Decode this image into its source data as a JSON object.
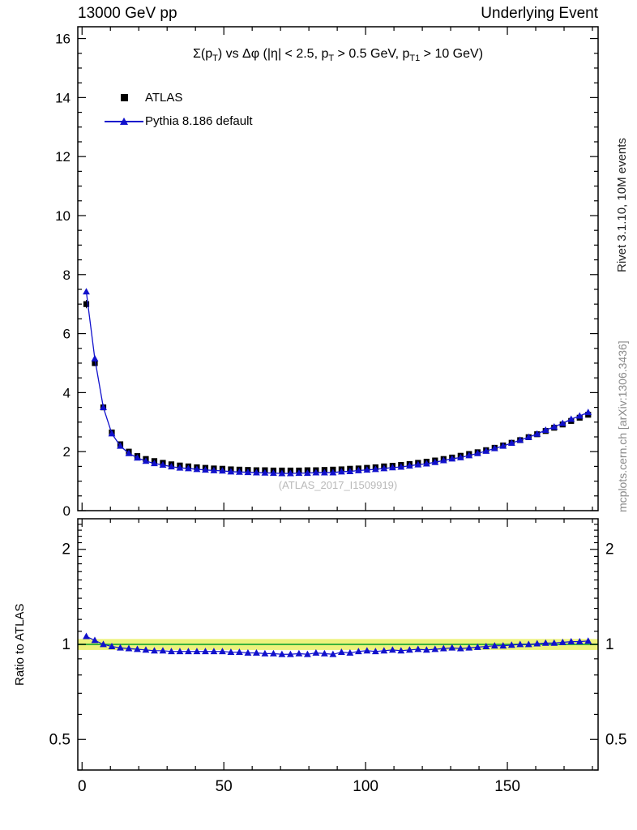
{
  "header": {
    "left": "13000 GeV pp",
    "right": "Underlying Event"
  },
  "plot": {
    "title": "Σ(p_T) vs Δφ (|η| < 2.5, p_T > 0.5 GeV, p_T1 > 10 GeV)",
    "title_parts": [
      [
        "t",
        "Σ(p"
      ],
      [
        "s",
        "T"
      ],
      [
        "t",
        ") vs Δφ (|η| < 2.5, p"
      ],
      [
        "s",
        "T"
      ],
      [
        "t",
        " > 0.5 GeV, p"
      ],
      [
        "s",
        "T1"
      ],
      [
        "t",
        " > 10 GeV)"
      ]
    ],
    "watermark": "(ATLAS_2017_I1509919)",
    "legend": {
      "atlas": "ATLAS",
      "pythia": "Pythia 8.186 default"
    }
  },
  "sidebar": {
    "top": "Rivet 3.1.10, 10M events",
    "bottom": "mcplots.cern.ch [arXiv:1306.3436]"
  },
  "ratio": {
    "ylabel": "Ratio to ATLAS"
  },
  "colors": {
    "atlas": "#000000",
    "pythia": "#1111cc",
    "band": "#edf27c",
    "band_line": "#3bb23b",
    "watermark": "#b9b9b9",
    "reference": "#8a8a8a"
  },
  "chart_data": [
    {
      "type": "scatter",
      "title": "Σ(p_T) vs Δφ (|η| < 2.5, p_T > 0.5 GeV, p_T1 > 10 GeV)",
      "xlabel": "",
      "ylabel": "",
      "xlim": [
        -1.5,
        182
      ],
      "ylim": [
        0,
        16.4
      ],
      "xticks": [
        0,
        50,
        100,
        150
      ],
      "yticks": [
        0,
        2,
        4,
        6,
        8,
        10,
        12,
        14,
        16
      ],
      "x": [
        1.5,
        4.5,
        7.5,
        10.5,
        13.5,
        16.5,
        19.5,
        22.5,
        25.5,
        28.5,
        31.5,
        34.5,
        37.5,
        40.5,
        43.5,
        46.5,
        49.5,
        52.5,
        55.5,
        58.5,
        61.5,
        64.5,
        67.5,
        70.5,
        73.5,
        76.5,
        79.5,
        82.5,
        85.5,
        88.5,
        91.5,
        94.5,
        97.5,
        100.5,
        103.5,
        106.5,
        109.5,
        112.5,
        115.5,
        118.5,
        121.5,
        124.5,
        127.5,
        130.5,
        133.5,
        136.5,
        139.5,
        142.5,
        145.5,
        148.5,
        151.5,
        154.5,
        157.5,
        160.5,
        163.5,
        166.5,
        169.5,
        172.5,
        175.5,
        178.5
      ],
      "series": [
        {
          "name": "ATLAS",
          "marker": "square",
          "color": "#000000",
          "values": [
            7.0,
            5.0,
            3.5,
            2.65,
            2.25,
            2.0,
            1.85,
            1.75,
            1.68,
            1.62,
            1.57,
            1.53,
            1.5,
            1.47,
            1.45,
            1.43,
            1.42,
            1.4,
            1.39,
            1.38,
            1.37,
            1.37,
            1.36,
            1.36,
            1.36,
            1.36,
            1.37,
            1.37,
            1.38,
            1.39,
            1.4,
            1.42,
            1.43,
            1.45,
            1.47,
            1.5,
            1.52,
            1.55,
            1.58,
            1.62,
            1.66,
            1.7,
            1.75,
            1.8,
            1.86,
            1.92,
            1.98,
            2.05,
            2.13,
            2.21,
            2.3,
            2.39,
            2.49,
            2.59,
            2.7,
            2.81,
            2.92,
            3.04,
            3.15,
            3.25
          ]
        },
        {
          "name": "Pythia 8.186 default",
          "marker": "triangle",
          "color": "#1111cc",
          "values": [
            7.42,
            5.15,
            3.5,
            2.61,
            2.19,
            1.94,
            1.79,
            1.68,
            1.6,
            1.55,
            1.49,
            1.45,
            1.43,
            1.4,
            1.38,
            1.36,
            1.35,
            1.32,
            1.31,
            1.3,
            1.29,
            1.28,
            1.27,
            1.26,
            1.26,
            1.27,
            1.27,
            1.29,
            1.29,
            1.29,
            1.32,
            1.33,
            1.36,
            1.38,
            1.4,
            1.43,
            1.46,
            1.48,
            1.52,
            1.56,
            1.59,
            1.64,
            1.7,
            1.76,
            1.8,
            1.87,
            1.94,
            2.02,
            2.11,
            2.19,
            2.29,
            2.39,
            2.49,
            2.6,
            2.73,
            2.84,
            2.96,
            3.1,
            3.21,
            3.33
          ]
        }
      ]
    },
    {
      "type": "scatter",
      "title": "",
      "xlabel": "",
      "ylabel": "Ratio to ATLAS",
      "yscale": "log",
      "xlim": [
        -1.5,
        182
      ],
      "ylim": [
        0.4,
        2.5
      ],
      "xticks": [
        0,
        50,
        100,
        150
      ],
      "yticks": [
        0.5,
        1,
        2
      ],
      "band": {
        "min": 0.96,
        "max": 1.04
      },
      "x": [
        1.5,
        4.5,
        7.5,
        10.5,
        13.5,
        16.5,
        19.5,
        22.5,
        25.5,
        28.5,
        31.5,
        34.5,
        37.5,
        40.5,
        43.5,
        46.5,
        49.5,
        52.5,
        55.5,
        58.5,
        61.5,
        64.5,
        67.5,
        70.5,
        73.5,
        76.5,
        79.5,
        82.5,
        85.5,
        88.5,
        91.5,
        94.5,
        97.5,
        100.5,
        103.5,
        106.5,
        109.5,
        112.5,
        115.5,
        118.5,
        121.5,
        124.5,
        127.5,
        130.5,
        133.5,
        136.5,
        139.5,
        142.5,
        145.5,
        148.5,
        151.5,
        154.5,
        157.5,
        160.5,
        163.5,
        166.5,
        169.5,
        172.5,
        175.5,
        178.5
      ],
      "series": [
        {
          "name": "Pythia 8.186 default / ATLAS",
          "marker": "triangle",
          "color": "#1111cc",
          "values": [
            1.06,
            1.03,
            1.0,
            0.985,
            0.975,
            0.97,
            0.965,
            0.96,
            0.955,
            0.955,
            0.95,
            0.95,
            0.95,
            0.95,
            0.95,
            0.95,
            0.95,
            0.945,
            0.945,
            0.94,
            0.94,
            0.935,
            0.935,
            0.93,
            0.93,
            0.935,
            0.93,
            0.94,
            0.935,
            0.93,
            0.945,
            0.94,
            0.95,
            0.955,
            0.95,
            0.955,
            0.96,
            0.955,
            0.96,
            0.965,
            0.96,
            0.965,
            0.97,
            0.975,
            0.97,
            0.975,
            0.98,
            0.985,
            0.99,
            0.99,
            0.995,
            1.0,
            1.0,
            1.005,
            1.01,
            1.01,
            1.015,
            1.02,
            1.02,
            1.025
          ]
        }
      ]
    }
  ]
}
